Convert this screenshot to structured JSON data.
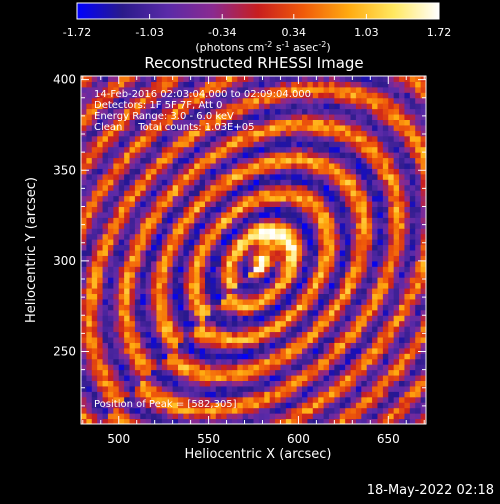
{
  "footer": {
    "timestamp": "18-May-2022 02:18"
  },
  "chart_data": {
    "type": "heatmap",
    "title": "Reconstructed RHESSI Image",
    "xlabel": "Heliocentric X (arcsec)",
    "ylabel": "Heliocentric Y (arcsec)",
    "xlim": [
      479,
      671
    ],
    "ylim": [
      210,
      402
    ],
    "x_ticks": [
      "500",
      "550",
      "600",
      "650"
    ],
    "x_tick_values": [
      500,
      550,
      600,
      650
    ],
    "y_ticks": [
      "250",
      "300",
      "350",
      "400"
    ],
    "y_tick_values": [
      250,
      300,
      350,
      400
    ],
    "colorbar": {
      "ticks": [
        "-1.72",
        "-1.03",
        "-0.34",
        "0.34",
        "1.03",
        "1.72"
      ],
      "tick_values": [
        -1.72,
        -1.03,
        -0.34,
        0.34,
        1.03,
        1.72
      ],
      "range": [
        -1.72,
        1.72
      ],
      "colors": [
        "#0000ff",
        "#2a1a8a",
        "#5a2aa8",
        "#8a2a90",
        "#c81e1e",
        "#f05a0a",
        "#ffaa10",
        "#ffe860",
        "#ffffff"
      ],
      "units": {
        "open": "(photons cm",
        "exp1": "-2",
        "mid": " s",
        "exp2": "-1",
        "mid2": " asec",
        "exp3": "-2",
        "close": ")"
      }
    },
    "annotations": {
      "time_range": "14-Feb-2016 02:03:04.000 to 02:09:04.000",
      "detectors": "Detectors: 1F 5F 7F, Att 0",
      "energy_range": "Energy Range: 3.0 - 6.0 keV",
      "method": "Clean     Total counts: 1.03E+05",
      "peak": "Position of Peak = [582,305]"
    },
    "peak": {
      "x": 582,
      "y": 305
    },
    "grid": false,
    "legend": "none"
  }
}
